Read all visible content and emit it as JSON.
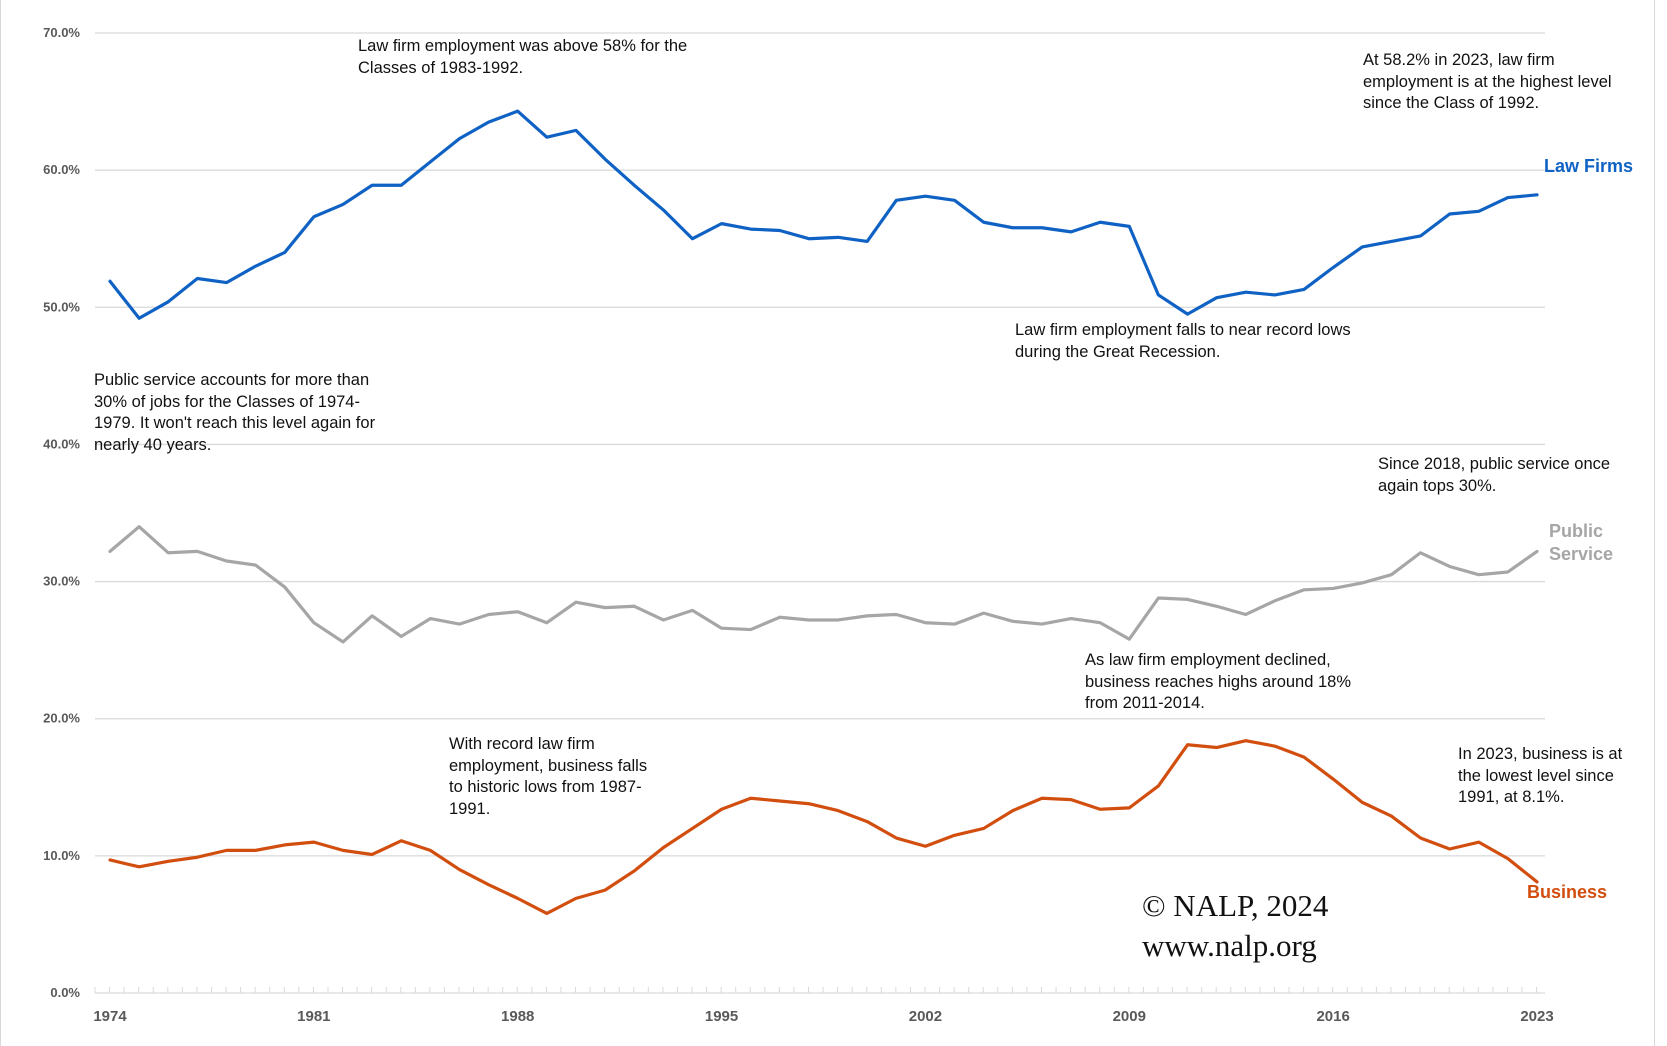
{
  "chart_data": {
    "type": "line",
    "title": "",
    "xlabel": "",
    "ylabel": "",
    "values_note": "Series values are estimated from line positions; only 2023 values (Law Firms 58.2%, Business 8.1%) are stated directly in the chart annotations.",
    "x": [
      1974,
      1975,
      1976,
      1977,
      1978,
      1979,
      1980,
      1981,
      1982,
      1983,
      1984,
      1985,
      1986,
      1987,
      1988,
      1989,
      1990,
      1991,
      1992,
      1993,
      1994,
      1995,
      1996,
      1997,
      1998,
      1999,
      2000,
      2001,
      2002,
      2003,
      2004,
      2005,
      2006,
      2007,
      2008,
      2009,
      2010,
      2011,
      2012,
      2013,
      2014,
      2015,
      2016,
      2017,
      2018,
      2019,
      2020,
      2021,
      2022,
      2023
    ],
    "xticks": [
      "1974",
      "1981",
      "1988",
      "1995",
      "2002",
      "2009",
      "2016",
      "2023"
    ],
    "ylim": [
      0,
      70
    ],
    "yticks": [
      "0.0%",
      "10.0%",
      "20.0%",
      "30.0%",
      "40.0%",
      "50.0%",
      "60.0%",
      "70.0%"
    ],
    "grid": true,
    "legend": "inline-right",
    "series": [
      {
        "name": "Law Firms",
        "color": "#0f62c4",
        "values": [
          51.9,
          49.2,
          50.4,
          52.1,
          51.8,
          53.0,
          54.0,
          56.6,
          57.5,
          58.9,
          58.9,
          60.6,
          62.3,
          63.5,
          64.3,
          62.4,
          62.9,
          60.8,
          58.9,
          57.1,
          55.0,
          56.1,
          55.7,
          55.6,
          55.0,
          55.1,
          54.8,
          57.8,
          58.1,
          57.8,
          56.2,
          55.8,
          55.8,
          55.5,
          56.2,
          55.9,
          50.9,
          49.5,
          50.7,
          51.1,
          50.9,
          51.3,
          52.9,
          54.4,
          54.8,
          55.2,
          56.8,
          57.0,
          58.0,
          58.2
        ]
      },
      {
        "name": "Public\nService",
        "color": "#a6a6a6",
        "values": [
          32.2,
          34.0,
          32.1,
          32.2,
          31.5,
          31.2,
          29.6,
          27.0,
          25.6,
          27.5,
          26.0,
          27.3,
          26.9,
          27.6,
          27.8,
          27.0,
          28.5,
          28.1,
          28.2,
          27.2,
          27.9,
          26.6,
          26.5,
          27.4,
          27.2,
          27.2,
          27.5,
          27.6,
          27.0,
          26.9,
          27.7,
          27.1,
          26.9,
          27.3,
          27.0,
          25.8,
          28.8,
          28.7,
          28.2,
          27.6,
          28.6,
          29.4,
          29.5,
          29.9,
          30.5,
          32.1,
          31.1,
          30.5,
          30.7,
          32.2
        ]
      },
      {
        "name": "Business",
        "color": "#d24e0e",
        "values": [
          9.7,
          9.2,
          9.6,
          9.9,
          10.4,
          10.4,
          10.8,
          11.0,
          10.4,
          10.1,
          11.1,
          10.4,
          9.0,
          7.9,
          6.9,
          5.8,
          6.9,
          7.5,
          8.9,
          10.6,
          12.0,
          13.4,
          14.2,
          14.0,
          13.8,
          13.3,
          12.5,
          11.3,
          10.7,
          11.5,
          12.0,
          13.3,
          14.2,
          14.1,
          13.4,
          13.5,
          15.1,
          18.1,
          17.9,
          18.4,
          18.0,
          17.2,
          15.6,
          13.9,
          12.9,
          11.3,
          10.5,
          11.0,
          9.8,
          8.1
        ]
      }
    ],
    "annotations": [
      "Law firm employment was above 58% for the\nClasses of 1983-1992.",
      "At 58.2% in 2023, law firm\nemployment is at the highest level\nsince the Class of 1992.",
      "Law firm employment falls to near record lows\nduring the Great Recession.",
      "Public service accounts for more than\n30% of jobs for the Classes of 1974-\n1979. It won't reach this level again for\nnearly 40 years.",
      "Since 2018, public service once\nagain tops 30%.",
      "As law firm employment declined,\nbusiness reaches highs around 18%\nfrom 2011-2014.",
      "With record law firm\nemployment, business falls\nto historic lows from 1987-\n1991.",
      "In 2023, business is at\nthe lowest level since\n1991, at 8.1%."
    ],
    "credit": "© NALP, 2024\nwww.nalp.org"
  }
}
